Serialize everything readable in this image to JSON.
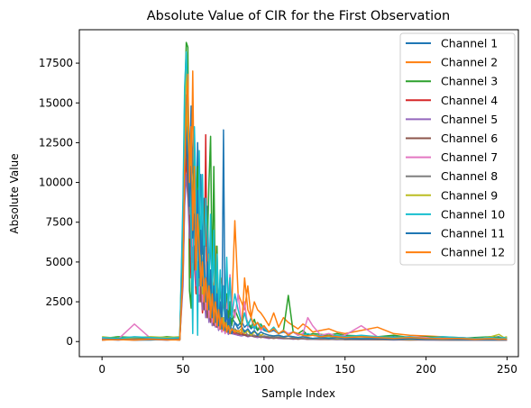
{
  "chart_data": {
    "type": "line",
    "title": "Absolute Value of CIR for the First Observation",
    "xlabel": "Sample Index",
    "ylabel": "Absolute Value",
    "xlim": [
      -14,
      257
    ],
    "ylim": [
      -950,
      19600
    ],
    "xticks": [
      0,
      50,
      100,
      150,
      200,
      250
    ],
    "yticks": [
      0,
      2500,
      5000,
      7500,
      10000,
      12500,
      15000,
      17500
    ],
    "grid": false,
    "legend_position": "upper right",
    "x": [
      0,
      10,
      20,
      30,
      40,
      48,
      50,
      51,
      52,
      53,
      54,
      55,
      56,
      57,
      58,
      59,
      60,
      61,
      62,
      63,
      64,
      65,
      66,
      67,
      68,
      69,
      70,
      71,
      72,
      73,
      74,
      75,
      76,
      77,
      78,
      79,
      80,
      82,
      84,
      86,
      88,
      90,
      92,
      94,
      96,
      98,
      100,
      103,
      106,
      109,
      112,
      115,
      118,
      121,
      124,
      127,
      130,
      135,
      140,
      145,
      150,
      160,
      170,
      180,
      190,
      200,
      210,
      220,
      230,
      240,
      245,
      248,
      250
    ],
    "series": [
      {
        "name": "Channel 1",
        "color": "#1f77b4",
        "values": [
          150,
          100,
          200,
          150,
          100,
          150,
          6000,
          12000,
          16000,
          13500,
          10500,
          14800,
          11000,
          9500,
          6500,
          12500,
          8000,
          10500,
          5500,
          9000,
          6000,
          8500,
          4000,
          6500,
          3500,
          5500,
          2800,
          4500,
          2000,
          3500,
          1500,
          3000,
          1200,
          2500,
          900,
          2000,
          1500,
          1200,
          1000,
          1300,
          900,
          1100,
          800,
          1000,
          700,
          900,
          700,
          600,
          700,
          500,
          600,
          500,
          600,
          400,
          500,
          450,
          400,
          350,
          400,
          300,
          350,
          300,
          250,
          300,
          200,
          250,
          200,
          250,
          200,
          250,
          300,
          200,
          250
        ]
      },
      {
        "name": "Channel 2",
        "color": "#ff7f0e",
        "values": [
          100,
          150,
          120,
          180,
          100,
          120,
          5000,
          10000,
          13000,
          17000,
          4000,
          9000,
          17000,
          8000,
          5000,
          4500,
          3500,
          7000,
          2000,
          6000,
          9000,
          1500,
          5500,
          2500,
          4000,
          3000,
          6000,
          2500,
          1800,
          3500,
          4000,
          2200,
          3000,
          2000,
          1500,
          2500,
          2000,
          7600,
          3000,
          2500,
          2000,
          3500,
          1500,
          2500,
          2000,
          1800,
          1500,
          1000,
          1800,
          900,
          1500,
          1200,
          1000,
          800,
          1100,
          900,
          600,
          700,
          800,
          600,
          500,
          700,
          900,
          500,
          400,
          350,
          300,
          250,
          200,
          300,
          250,
          200,
          250
        ]
      },
      {
        "name": "Channel 3",
        "color": "#2ca02c",
        "values": [
          200,
          300,
          250,
          200,
          300,
          250,
          8000,
          15000,
          18800,
          18500,
          3200,
          2100,
          9000,
          12000,
          8500,
          11000,
          7000,
          5000,
          2500,
          8000,
          9500,
          6000,
          10000,
          12900,
          3500,
          11000,
          2000,
          6000,
          1500,
          4000,
          1500,
          2500,
          2000,
          3000,
          1500,
          2500,
          1000,
          2000,
          1500,
          1000,
          1800,
          1200,
          900,
          1400,
          700,
          1100,
          800,
          600,
          900,
          500,
          700,
          2900,
          600,
          500,
          700,
          400,
          500,
          450,
          400,
          500,
          400,
          350,
          300,
          400,
          250,
          300,
          250,
          200,
          250,
          300,
          250,
          200,
          200
        ]
      },
      {
        "name": "Channel 4",
        "color": "#d62728",
        "values": [
          100,
          150,
          100,
          120,
          150,
          100,
          4000,
          9000,
          11500,
          10000,
          7000,
          4000,
          6000,
          5000,
          3000,
          4000,
          2500,
          3500,
          1800,
          3000,
          13000,
          2000,
          2500,
          1500,
          2000,
          1200,
          1600,
          1000,
          1200,
          800,
          1000,
          700,
          900,
          600,
          700,
          500,
          600,
          500,
          400,
          500,
          450,
          400,
          350,
          400,
          300,
          350,
          300,
          250,
          300,
          200,
          250,
          200,
          250,
          200,
          200,
          150,
          200,
          180,
          150,
          160,
          140,
          150,
          130,
          140,
          120,
          130,
          110,
          120,
          100,
          110,
          100,
          110,
          100
        ]
      },
      {
        "name": "Channel 5",
        "color": "#9467bd",
        "values": [
          120,
          100,
          150,
          120,
          100,
          150,
          3500,
          8500,
          10500,
          9000,
          6500,
          7800,
          5000,
          6000,
          3500,
          5000,
          2500,
          4000,
          2000,
          3000,
          1500,
          2500,
          1200,
          2000,
          1000,
          1500,
          900,
          1200,
          700,
          1000,
          600,
          900,
          500,
          800,
          450,
          600,
          500,
          450,
          400,
          350,
          400,
          300,
          350,
          300,
          250,
          300,
          250,
          200,
          250,
          200,
          180,
          200,
          150,
          180,
          160,
          150,
          140,
          130,
          150,
          120,
          130,
          110,
          120,
          100,
          110,
          100,
          90,
          100,
          90,
          100,
          90,
          100,
          90
        ]
      },
      {
        "name": "Channel 6",
        "color": "#8c564b",
        "values": [
          150,
          120,
          100,
          150,
          120,
          130,
          5500,
          11000,
          12500,
          9500,
          8000,
          6000,
          9000,
          4500,
          7000,
          3000,
          5500,
          2500,
          4500,
          2000,
          3500,
          1500,
          3000,
          1200,
          2500,
          1000,
          2000,
          900,
          1500,
          800,
          1200,
          700,
          1000,
          600,
          800,
          500,
          700,
          600,
          500,
          450,
          400,
          350,
          400,
          300,
          350,
          250,
          300,
          250,
          200,
          250,
          200,
          180,
          200,
          150,
          180,
          150,
          160,
          140,
          130,
          150,
          120,
          130,
          110,
          120,
          100,
          110,
          100,
          90,
          100,
          90,
          100,
          90,
          100
        ]
      },
      {
        "name": "Channel 7",
        "color": "#e377c2",
        "values": [
          200,
          150,
          1100,
          200,
          150,
          200,
          7000,
          14000,
          16500,
          12000,
          9000,
          11000,
          6000,
          8500,
          4500,
          7000,
          3000,
          5500,
          2500,
          4500,
          2000,
          3500,
          1500,
          3000,
          1200,
          2500,
          1000,
          2000,
          800,
          1500,
          600,
          1200,
          500,
          2000,
          3000,
          4200,
          2500,
          1500,
          3000,
          1200,
          2500,
          900,
          1500,
          800,
          1200,
          700,
          900,
          600,
          800,
          500,
          700,
          500,
          600,
          400,
          500,
          1500,
          1000,
          400,
          500,
          350,
          400,
          1000,
          300,
          250,
          300,
          250,
          200,
          250,
          200,
          250,
          200,
          250,
          200
        ]
      },
      {
        "name": "Channel 8",
        "color": "#7f7f7f",
        "values": [
          150,
          200,
          150,
          200,
          150,
          180,
          6500,
          13000,
          15500,
          11000,
          8000,
          10000,
          7000,
          9000,
          5000,
          7500,
          3500,
          6000,
          3000,
          5000,
          2500,
          4000,
          2000,
          3500,
          1500,
          3000,
          1200,
          2500,
          1000,
          2000,
          800,
          1500,
          700,
          1200,
          600,
          1000,
          500,
          800,
          600,
          500,
          700,
          400,
          500,
          350,
          400,
          300,
          350,
          300,
          250,
          300,
          250,
          200,
          250,
          200,
          180,
          200,
          150,
          180,
          160,
          150,
          140,
          130,
          150,
          120,
          130,
          110,
          120,
          100,
          110,
          100,
          110,
          100,
          110
        ]
      },
      {
        "name": "Channel 9",
        "color": "#bcbd22",
        "values": [
          300,
          200,
          250,
          300,
          250,
          300,
          7500,
          14500,
          17500,
          13000,
          9500,
          12000,
          7500,
          10000,
          5500,
          8000,
          4000,
          6500,
          3000,
          5500,
          2500,
          4500,
          2000,
          3500,
          1500,
          3000,
          1200,
          2500,
          1000,
          2000,
          800,
          1500,
          700,
          1200,
          600,
          1000,
          800,
          700,
          600,
          800,
          500,
          700,
          400,
          600,
          500,
          400,
          500,
          400,
          350,
          400,
          300,
          350,
          300,
          250,
          300,
          250,
          200,
          250,
          300,
          200,
          250,
          200,
          250,
          200,
          150,
          200,
          150,
          200,
          150,
          300,
          450,
          250,
          300
        ]
      },
      {
        "name": "Channel 10",
        "color": "#17becf",
        "values": [
          250,
          200,
          300,
          250,
          200,
          250,
          9000,
          16000,
          18200,
          15500,
          12000,
          7000,
          500,
          13500,
          9500,
          400,
          12000,
          5500,
          10500,
          4000,
          9000,
          6500,
          3000,
          8000,
          2500,
          7000,
          1500,
          5500,
          2000,
          4500,
          800,
          3500,
          1500,
          5300,
          2000,
          4000,
          1500,
          3000,
          2000,
          1200,
          1800,
          1000,
          1500,
          800,
          1200,
          1000,
          800,
          600,
          900,
          500,
          700,
          400,
          600,
          500,
          400,
          500,
          400,
          350,
          300,
          400,
          300,
          400,
          300,
          250,
          300,
          200,
          300,
          250,
          200,
          250,
          200,
          250,
          200
        ]
      },
      {
        "name": "Channel 11",
        "color": "#1f77b4",
        "values": [
          100,
          150,
          100,
          100,
          150,
          100,
          5000,
          10500,
          13500,
          11500,
          8500,
          11000,
          6500,
          8000,
          5000,
          9500,
          4000,
          7000,
          3500,
          6000,
          2500,
          5000,
          2000,
          4500,
          1500,
          3500,
          1200,
          3000,
          1000,
          2500,
          800,
          13300,
          700,
          2000,
          600,
          1500,
          500,
          1200,
          800,
          1000,
          600,
          800,
          500,
          700,
          400,
          600,
          500,
          400,
          350,
          400,
          300,
          350,
          300,
          250,
          300,
          250,
          200,
          250,
          200,
          250,
          200,
          180,
          200,
          150,
          180,
          150,
          160,
          140,
          150,
          130,
          140,
          130,
          140
        ]
      },
      {
        "name": "Channel 12",
        "color": "#ff7f0e",
        "values": [
          100,
          120,
          100,
          150,
          120,
          100,
          4500,
          11000,
          14000,
          16800,
          10000,
          13500,
          7000,
          11000,
          4500,
          8000,
          6000,
          3500,
          5000,
          2500,
          4000,
          2000,
          3500,
          1500,
          3000,
          1200,
          2500,
          1000,
          2000,
          800,
          1500,
          700,
          1200,
          600,
          1000,
          500,
          800,
          600,
          700,
          500,
          4000,
          2000,
          1500,
          1000,
          1200,
          800,
          1000,
          600,
          800,
          500,
          700,
          400,
          600,
          500,
          400,
          350,
          400,
          300,
          350,
          300,
          250,
          300,
          250,
          200,
          250,
          200,
          180,
          200,
          150,
          180,
          150,
          160,
          150
        ]
      }
    ]
  }
}
